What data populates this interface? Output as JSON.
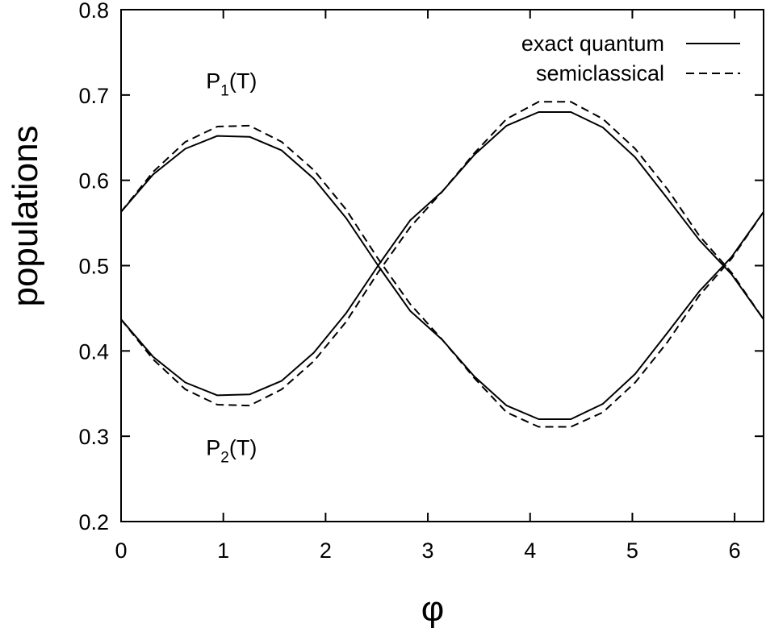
{
  "chart_data": {
    "type": "line",
    "title": "",
    "xlabel": "φ",
    "ylabel": "populations",
    "xlim": [
      0,
      6.2832
    ],
    "ylim": [
      0.2,
      0.8
    ],
    "xticks": [
      0,
      1,
      2,
      3,
      4,
      5,
      6
    ],
    "yticks": [
      0.2,
      0.3,
      0.4,
      0.5,
      0.6,
      0.7,
      0.8
    ],
    "xtick_labels": [
      "0",
      "1",
      "2",
      "3",
      "4",
      "5",
      "6"
    ],
    "ytick_labels": [
      "0.2",
      "0.3",
      "0.4",
      "0.5",
      "0.6",
      "0.7",
      "0.8"
    ],
    "grid": false,
    "legend_position": "top-right",
    "x": [
      0,
      0.314,
      0.628,
      0.942,
      1.257,
      1.571,
      1.885,
      2.199,
      2.513,
      2.827,
      3.142,
      3.456,
      3.77,
      4.084,
      4.398,
      4.712,
      5.027,
      5.341,
      5.655,
      5.969,
      6.283
    ],
    "series": [
      {
        "name": "exact quantum",
        "curve": "P1(T)",
        "style": "solid",
        "values": [
          0.563,
          0.607,
          0.637,
          0.652,
          0.651,
          0.635,
          0.602,
          0.556,
          0.5,
          0.447,
          0.413,
          0.37,
          0.336,
          0.32,
          0.32,
          0.338,
          0.373,
          0.421,
          0.47,
          0.51,
          0.563
        ]
      },
      {
        "name": "exact quantum",
        "curve": "P2(T)",
        "style": "solid",
        "values": [
          0.437,
          0.393,
          0.363,
          0.348,
          0.349,
          0.365,
          0.398,
          0.444,
          0.5,
          0.553,
          0.587,
          0.63,
          0.664,
          0.68,
          0.68,
          0.662,
          0.627,
          0.579,
          0.53,
          0.49,
          0.437
        ]
      },
      {
        "name": "semiclassical",
        "curve": "P1(T)",
        "style": "dashed",
        "values": [
          0.563,
          0.61,
          0.645,
          0.663,
          0.664,
          0.645,
          0.612,
          0.566,
          0.508,
          0.455,
          0.413,
          0.368,
          0.328,
          0.311,
          0.311,
          0.328,
          0.363,
          0.41,
          0.465,
          0.508,
          0.563
        ]
      },
      {
        "name": "semiclassical",
        "curve": "P2(T)",
        "style": "dashed",
        "values": [
          0.437,
          0.39,
          0.355,
          0.337,
          0.336,
          0.355,
          0.388,
          0.434,
          0.492,
          0.545,
          0.587,
          0.632,
          0.672,
          0.692,
          0.692,
          0.672,
          0.637,
          0.59,
          0.535,
          0.492,
          0.437
        ]
      }
    ],
    "legend": [
      {
        "label": "exact quantum",
        "style": "solid"
      },
      {
        "label": "semiclassical",
        "style": "dashed"
      }
    ],
    "annotations": [
      {
        "main": "P",
        "sub": "1",
        "tail": "(T)",
        "x": 1.08,
        "y": 0.708
      },
      {
        "main": "P",
        "sub": "2",
        "tail": "(T)",
        "x": 1.08,
        "y": 0.278
      }
    ]
  }
}
